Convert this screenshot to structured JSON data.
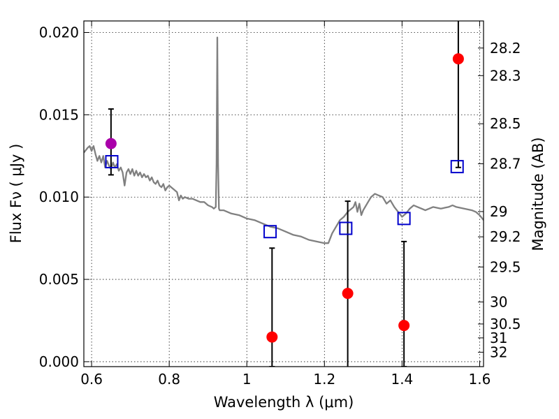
{
  "chart_data": {
    "type": "scatter",
    "title": "",
    "xlabel": "Wavelength  λ (μm)",
    "ylabel": "Flux  Fν  ( μJy )",
    "y2label": "Magnitude (AB)",
    "xlim": [
      0.58,
      1.61
    ],
    "ylim": [
      -0.0003,
      0.0207
    ],
    "grid": true,
    "x_ticks": [
      0.6,
      0.8,
      1.0,
      1.2,
      1.4,
      1.6
    ],
    "x_tick_labels": [
      "0.6",
      "0.8",
      "1",
      "1.2",
      "1.4",
      "1.6"
    ],
    "y_ticks": [
      0.0,
      0.005,
      0.01,
      0.015,
      0.02
    ],
    "y_tick_labels": [
      "0.000",
      "0.005",
      "0.010",
      "0.015",
      "0.020"
    ],
    "mag_ticks": [
      {
        "label": "28.2",
        "mag": 28.2
      },
      {
        "label": "28.3",
        "mag": 28.3
      },
      {
        "label": "28.5",
        "mag": 28.5
      },
      {
        "label": "28.7",
        "mag": 28.7
      },
      {
        "label": "29",
        "mag": 29.0
      },
      {
        "label": "29.2",
        "mag": 29.2
      },
      {
        "label": "29.5",
        "mag": 29.5
      },
      {
        "label": "30",
        "mag": 30.0
      },
      {
        "label": "30.5",
        "mag": 30.5
      },
      {
        "label": "31",
        "mag": 31.0
      },
      {
        "label": "32",
        "mag": 32.0
      }
    ],
    "colors": {
      "model": "#808080",
      "observed": "#ff0000",
      "optical": "#aa00aa",
      "model_photometry": "#0000cc",
      "errorbar": "#000000"
    },
    "series": [
      {
        "kind": "model_spectrum",
        "points": [
          [
            0.58,
            0.0127
          ],
          [
            0.59,
            0.013
          ],
          [
            0.595,
            0.0131
          ],
          [
            0.6,
            0.0128
          ],
          [
            0.605,
            0.0131
          ],
          [
            0.61,
            0.0126
          ],
          [
            0.615,
            0.0122
          ],
          [
            0.62,
            0.0125
          ],
          [
            0.625,
            0.0121
          ],
          [
            0.63,
            0.0125
          ],
          [
            0.635,
            0.0118
          ],
          [
            0.64,
            0.0122
          ],
          [
            0.645,
            0.0119
          ],
          [
            0.65,
            0.0117
          ],
          [
            0.655,
            0.0121
          ],
          [
            0.66,
            0.0118
          ],
          [
            0.665,
            0.012
          ],
          [
            0.67,
            0.0116
          ],
          [
            0.675,
            0.0118
          ],
          [
            0.68,
            0.0115
          ],
          [
            0.685,
            0.0107
          ],
          [
            0.69,
            0.0115
          ],
          [
            0.695,
            0.0117
          ],
          [
            0.7,
            0.0114
          ],
          [
            0.705,
            0.0117
          ],
          [
            0.71,
            0.0113
          ],
          [
            0.715,
            0.0116
          ],
          [
            0.72,
            0.0113
          ],
          [
            0.725,
            0.0115
          ],
          [
            0.73,
            0.0112
          ],
          [
            0.735,
            0.0114
          ],
          [
            0.74,
            0.0112
          ],
          [
            0.745,
            0.0113
          ],
          [
            0.75,
            0.011
          ],
          [
            0.755,
            0.0112
          ],
          [
            0.76,
            0.0109
          ],
          [
            0.765,
            0.0108
          ],
          [
            0.77,
            0.011
          ],
          [
            0.775,
            0.0107
          ],
          [
            0.78,
            0.0106
          ],
          [
            0.785,
            0.0108
          ],
          [
            0.79,
            0.0104
          ],
          [
            0.795,
            0.0106
          ],
          [
            0.8,
            0.0107
          ],
          [
            0.805,
            0.0106
          ],
          [
            0.81,
            0.0105
          ],
          [
            0.815,
            0.0104
          ],
          [
            0.82,
            0.0103
          ],
          [
            0.825,
            0.0098
          ],
          [
            0.83,
            0.0101
          ],
          [
            0.835,
            0.0099
          ],
          [
            0.84,
            0.01
          ],
          [
            0.85,
            0.0099
          ],
          [
            0.86,
            0.0099
          ],
          [
            0.87,
            0.0098
          ],
          [
            0.88,
            0.0097
          ],
          [
            0.89,
            0.0097
          ],
          [
            0.9,
            0.0095
          ],
          [
            0.91,
            0.0094
          ],
          [
            0.915,
            0.0093
          ],
          [
            0.92,
            0.0094
          ],
          [
            0.922,
            0.012
          ],
          [
            0.924,
            0.0197
          ],
          [
            0.926,
            0.012
          ],
          [
            0.928,
            0.0093
          ],
          [
            0.93,
            0.0092
          ],
          [
            0.94,
            0.0092
          ],
          [
            0.95,
            0.0091
          ],
          [
            0.96,
            0.009
          ],
          [
            0.98,
            0.0089
          ],
          [
            1.0,
            0.0087
          ],
          [
            1.02,
            0.0086
          ],
          [
            1.04,
            0.0084
          ],
          [
            1.06,
            0.0082
          ],
          [
            1.08,
            0.0081
          ],
          [
            1.1,
            0.0079
          ],
          [
            1.12,
            0.0077
          ],
          [
            1.14,
            0.0076
          ],
          [
            1.16,
            0.0074
          ],
          [
            1.18,
            0.0073
          ],
          [
            1.2,
            0.0072
          ],
          [
            1.21,
            0.0072
          ],
          [
            1.22,
            0.0078
          ],
          [
            1.23,
            0.0082
          ],
          [
            1.24,
            0.0086
          ],
          [
            1.25,
            0.0088
          ],
          [
            1.26,
            0.0091
          ],
          [
            1.27,
            0.0093
          ],
          [
            1.275,
            0.0094
          ],
          [
            1.28,
            0.0097
          ],
          [
            1.285,
            0.0091
          ],
          [
            1.29,
            0.0096
          ],
          [
            1.295,
            0.0089
          ],
          [
            1.3,
            0.0092
          ],
          [
            1.31,
            0.0096
          ],
          [
            1.32,
            0.01
          ],
          [
            1.33,
            0.0102
          ],
          [
            1.34,
            0.0101
          ],
          [
            1.35,
            0.01
          ],
          [
            1.36,
            0.0096
          ],
          [
            1.37,
            0.0098
          ],
          [
            1.38,
            0.0094
          ],
          [
            1.39,
            0.0091
          ],
          [
            1.4,
            0.0088
          ],
          [
            1.41,
            0.009
          ],
          [
            1.42,
            0.0093
          ],
          [
            1.43,
            0.0095
          ],
          [
            1.44,
            0.0094
          ],
          [
            1.45,
            0.0093
          ],
          [
            1.46,
            0.0092
          ],
          [
            1.48,
            0.0094
          ],
          [
            1.5,
            0.0093
          ],
          [
            1.52,
            0.0094
          ],
          [
            1.53,
            0.0095
          ],
          [
            1.54,
            0.0094
          ],
          [
            1.56,
            0.0093
          ],
          [
            1.58,
            0.0092
          ],
          [
            1.59,
            0.0091
          ],
          [
            1.6,
            0.0089
          ],
          [
            1.61,
            0.0086
          ]
        ]
      },
      {
        "kind": "observed_detection",
        "points": [
          {
            "x": 0.65,
            "y": 0.01325,
            "err_low": 0.0019,
            "err_high": 0.0021
          }
        ]
      },
      {
        "kind": "observed_photometry",
        "points": [
          {
            "x": 1.065,
            "y": 0.0015,
            "err_low": 0.0018,
            "err_high": 0.0054
          },
          {
            "x": 1.26,
            "y": 0.00415,
            "err_low": 0.0045,
            "err_high": 0.0056
          },
          {
            "x": 1.405,
            "y": 0.0022,
            "err_low": 0.0025,
            "err_high": 0.0051
          },
          {
            "x": 1.545,
            "y": 0.0184,
            "err_low": 0.0066,
            "err_high": 0.003
          }
        ]
      },
      {
        "kind": "model_photometry",
        "points": [
          {
            "x": 0.652,
            "y": 0.01215
          },
          {
            "x": 1.06,
            "y": 0.0079
          },
          {
            "x": 1.255,
            "y": 0.0081
          },
          {
            "x": 1.405,
            "y": 0.0087
          },
          {
            "x": 1.542,
            "y": 0.01185
          }
        ]
      }
    ]
  }
}
